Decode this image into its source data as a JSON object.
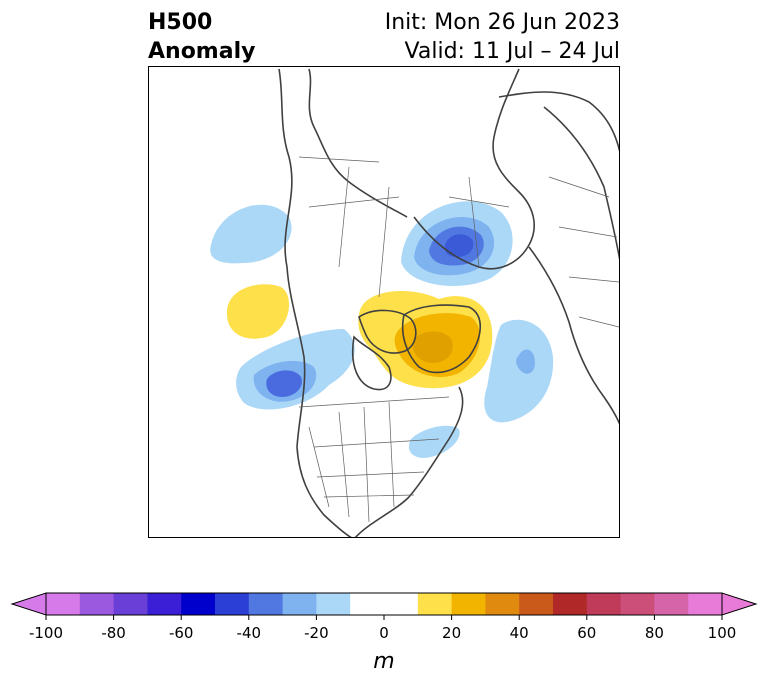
{
  "title": {
    "line1": "H500",
    "line2": "Anomaly",
    "init": "Init: Mon 26 Jun 2023",
    "valid": "Valid: 11 Jul – 24 Jul"
  },
  "colorbar": {
    "unit": "m",
    "range": [
      -100,
      100
    ],
    "step": 10,
    "extend": "both",
    "tick_values": [
      -100,
      -80,
      -60,
      -40,
      -20,
      0,
      20,
      40,
      60,
      80,
      100
    ],
    "tick_labels": [
      "-100",
      "-80",
      "-60",
      "-40",
      "-20",
      "0",
      "20",
      "40",
      "60",
      "80",
      "100"
    ],
    "colors": [
      "#d57ae8",
      "#9b59e0",
      "#6a3fd8",
      "#3a1fd6",
      "#0000cd",
      "#2b3fd6",
      "#5078e0",
      "#7eb3f0",
      "#acd8f8",
      "#ffffff",
      "#ffffff",
      "#fde04a",
      "#f3b400",
      "#e08b10",
      "#c95a1a",
      "#b02828",
      "#c03a5a",
      "#cc4f7a",
      "#d664a8",
      "#e87ad8"
    ]
  },
  "map": {
    "projection": "north-polar-stereographic",
    "region": "North America / Arctic"
  }
}
